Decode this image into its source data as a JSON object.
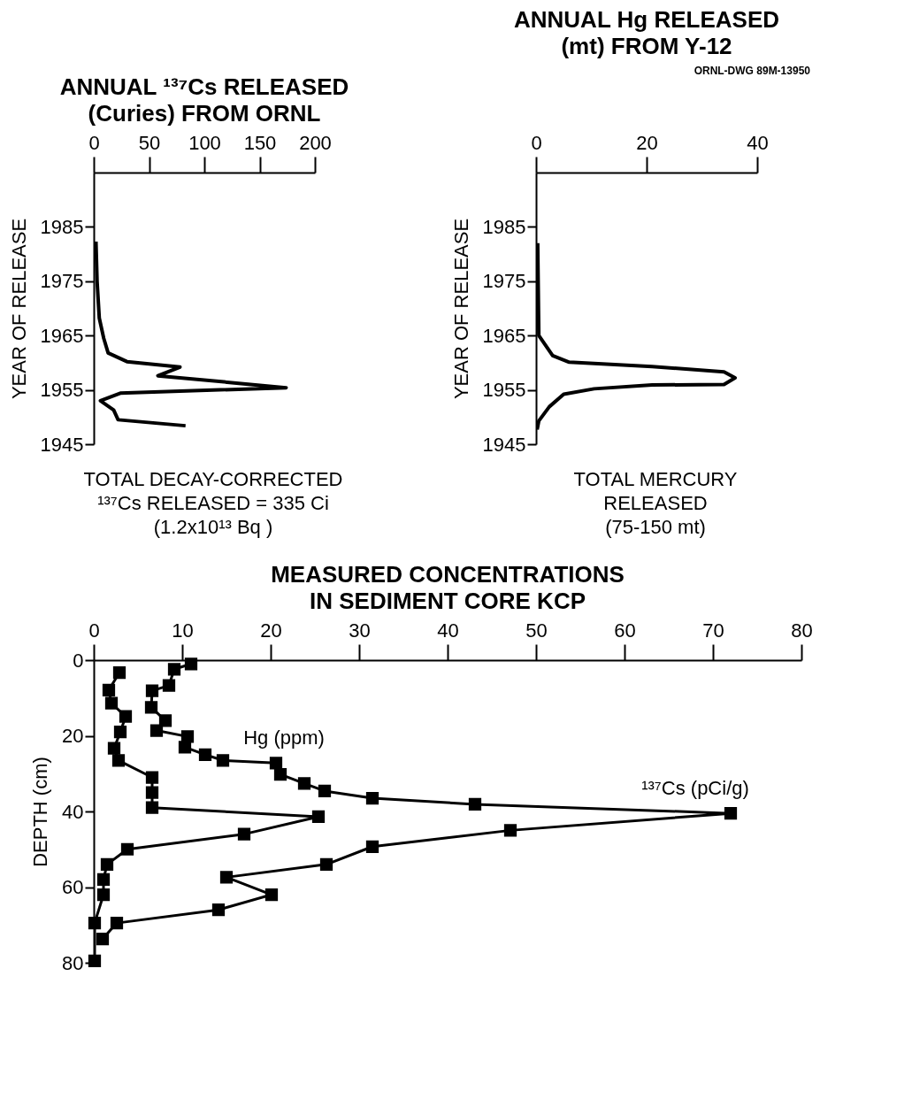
{
  "chart_data": [
    {
      "type": "line",
      "orientation": "horizontal",
      "title": "ANNUAL ¹³⁷Cs RELEASED\n(Curies) FROM ORNL",
      "ylabel": "YEAR OF RELEASE",
      "x": [
        1982.3,
        1975,
        1968.2,
        1964.5,
        1961.8,
        1960.2,
        1959.2,
        1957.6,
        1955.4,
        1954.4,
        1953,
        1951.3,
        1949.5,
        1948.4
      ],
      "series": [
        {
          "color": "#000000",
          "values": [
            2,
            3,
            5,
            9,
            13,
            30,
            78,
            58,
            174,
            24,
            6,
            18,
            22,
            83
          ]
        }
      ],
      "xlim": [
        0,
        200
      ],
      "xticks": [
        0,
        50,
        100,
        150,
        200
      ],
      "ylim": [
        1945,
        1995
      ],
      "yticks": [
        1945,
        1955,
        1965,
        1975,
        1985
      ],
      "marker": "none",
      "line_style": "solid",
      "annotations": [
        "TOTAL DECAY-CORRECTED\n¹³⁷Cs RELEASED = 335 Ci\n(1.2x10¹³ Bq )"
      ]
    },
    {
      "type": "line",
      "orientation": "horizontal",
      "title": "ANNUAL Hg RELEASED\n(mt) FROM Y-12",
      "ylabel": "YEAR OF RELEASE",
      "x": [
        1982,
        1965,
        1961.3,
        1960.1,
        1959.3,
        1958.3,
        1957.2,
        1956,
        1955.9,
        1955.2,
        1954.2,
        1951.9,
        1949.3,
        1947.7
      ],
      "series": [
        {
          "color": "#000000",
          "values": [
            0.3,
            0.5,
            3,
            6,
            21,
            34,
            36,
            34,
            21,
            10.5,
            5,
            2.4,
            0.5,
            0.2
          ]
        }
      ],
      "xlim": [
        0,
        40
      ],
      "xticks": [
        0,
        20,
        40
      ],
      "ylim": [
        1945,
        1995
      ],
      "yticks": [
        1945,
        1955,
        1965,
        1975,
        1985
      ],
      "marker": "none",
      "line_style": "solid",
      "annotations": [
        "ORNL-DWG 89M-13950",
        "TOTAL MERCURY\nRELEASED\n(75-150 mt)"
      ]
    },
    {
      "type": "line",
      "orientation": "horizontal",
      "title": "MEASURED CONCENTRATIONS\nIN SEDIMENT CORE KCP",
      "ylabel": "DEPTH (cm)",
      "series": [
        {
          "color": "#000000",
          "x": [
            3.3,
            7.9,
            11.4,
            14.9,
            19,
            23.3,
            26.5,
            31,
            35,
            39,
            41.4,
            46,
            50,
            54,
            58,
            62,
            69.5,
            79.5
          ],
          "values": [
            2.9,
            1.7,
            2.0,
            3.6,
            3.0,
            2.3,
            2.8,
            6.6,
            6.6,
            6.6,
            25.4,
            17.0,
            3.8,
            1.5,
            1.1,
            1.1,
            0.1,
            0.1
          ]
        },
        {
          "color": "#000000",
          "x": [
            1,
            2.4,
            6.7,
            8.1,
            12.5,
            16,
            18.6,
            20.2,
            23,
            25,
            26.5,
            27.2,
            30.2,
            32.6,
            34.6,
            36.5,
            38.1,
            40.5,
            45,
            49.3,
            54,
            57.4,
            62,
            66,
            69.5,
            73.7
          ],
          "values": [
            11.0,
            9.1,
            8.5,
            6.6,
            6.5,
            8.1,
            7.1,
            10.6,
            10.3,
            12.6,
            14.6,
            20.6,
            21.1,
            23.8,
            26.1,
            31.5,
            43.1,
            72.0,
            47.1,
            31.5,
            26.3,
            15.0,
            20.1,
            14.1,
            2.6,
            1.0
          ]
        }
      ],
      "xlim": [
        0,
        80
      ],
      "xticks": [
        0,
        10,
        20,
        30,
        40,
        50,
        60,
        70,
        80
      ],
      "ylim": [
        80,
        0
      ],
      "yticks": [
        0,
        20,
        40,
        60,
        80
      ],
      "marker": "square",
      "line_style": "solid",
      "annotations": [
        "Hg (ppm)",
        "¹³⁷Cs (pCi/g)"
      ]
    }
  ]
}
